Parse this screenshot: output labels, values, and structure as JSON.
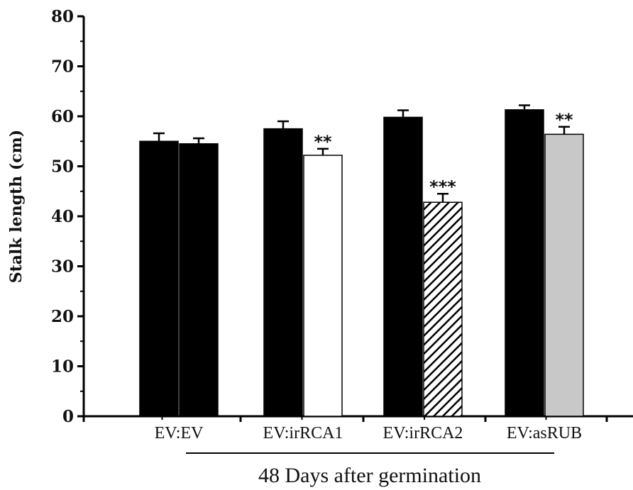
{
  "chart_data": {
    "type": "bar",
    "categories": [
      "EV:EV",
      "EV:irRCA1",
      "EV:irRCA2",
      "EV:asRUB"
    ],
    "series": [
      {
        "values": [
          55.0,
          57.5,
          59.8,
          61.3
        ],
        "errors": [
          1.6,
          1.5,
          1.4,
          0.9
        ],
        "significance": [
          "",
          "",
          "",
          ""
        ],
        "color": "#000000"
      },
      {
        "values": [
          54.5,
          52.2,
          42.8,
          56.4
        ],
        "errors": [
          1.1,
          1.3,
          1.7,
          1.5
        ],
        "significance": [
          "",
          "**",
          "***",
          "**"
        ],
        "colors": [
          "#000000",
          "#ffffff",
          "hatched",
          "#c8c8c8"
        ]
      }
    ],
    "ylabel": "Stalk length (cm)",
    "xlabel": "48 Days after germination",
    "ylim": [
      0,
      80
    ],
    "yticks": [
      0,
      10,
      20,
      30,
      40,
      50,
      60,
      70,
      80
    ],
    "grid": false,
    "legend": "none"
  }
}
